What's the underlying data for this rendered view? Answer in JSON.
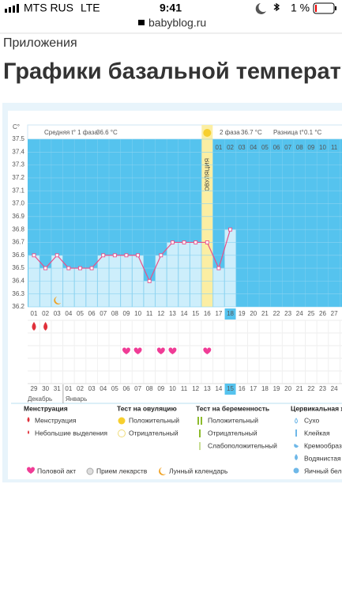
{
  "status_bar": {
    "carrier": "MTS RUS",
    "network": "LTE",
    "time": "9:41",
    "battery": "1 %"
  },
  "url": "babyblog.ru",
  "breadcrumb": "Приложения",
  "title": "Графики базальной температу",
  "summary": {
    "phase1_label": "Средняя t° 1 фаза",
    "phase1_value": "36.6 °C",
    "phase2_label": "2 фаза",
    "phase2_value": "36.7 °C",
    "diff_label": "Разница t°",
    "diff_value": "0.1 °C"
  },
  "chart_data": {
    "type": "line",
    "y_label": "C°",
    "categories": [
      "01",
      "02",
      "03",
      "04",
      "05",
      "06",
      "07",
      "08",
      "09",
      "10",
      "11",
      "12",
      "13",
      "14",
      "15",
      "16",
      "17",
      "18",
      "19",
      "20",
      "21",
      "22",
      "23",
      "24",
      "25",
      "26",
      "27"
    ],
    "values": [
      36.6,
      36.5,
      36.6,
      36.5,
      36.5,
      36.5,
      36.6,
      36.6,
      36.6,
      36.6,
      36.4,
      36.6,
      36.7,
      36.7,
      36.7,
      36.7,
      36.5,
      36.8,
      null,
      null,
      null,
      null,
      null,
      null,
      null,
      null,
      null
    ],
    "color": "#e8508a",
    "ylim": [
      36.2,
      37.5
    ],
    "yticks": [
      36.2,
      36.3,
      36.4,
      36.5,
      36.6,
      36.7,
      36.8,
      36.9,
      {
        "value": 37,
        "label": "37.0"
      },
      37.1,
      37.2,
      37.3,
      37.4,
      37.5
    ],
    "ovulation_day": "16",
    "ovulation_label": "ОВУЛЯЦИЯ",
    "highlight_day": "18",
    "phase2_day_labels": [
      "01",
      "02",
      "03",
      "04",
      "05",
      "06",
      "07",
      "08",
      "09",
      "10",
      "11"
    ],
    "menstruation_days": [
      "01",
      "02"
    ],
    "intercourse_days": [
      "09",
      "10",
      "12",
      "13",
      "16"
    ],
    "moon_days": [
      "03"
    ],
    "dates": [
      {
        "label": "29",
        "weekend": true
      },
      {
        "label": "30",
        "weekend": false
      },
      {
        "label": "31",
        "weekend": false
      },
      {
        "label": "01",
        "weekend": false
      },
      {
        "label": "02",
        "weekend": false
      },
      {
        "label": "03",
        "weekend": false
      },
      {
        "label": "04",
        "weekend": true
      },
      {
        "label": "05",
        "weekend": true
      },
      {
        "label": "06",
        "weekend": false
      },
      {
        "label": "07",
        "weekend": false
      },
      {
        "label": "08",
        "weekend": false
      },
      {
        "label": "09",
        "weekend": false
      },
      {
        "label": "10",
        "weekend": false
      },
      {
        "label": "11",
        "weekend": true
      },
      {
        "label": "12",
        "weekend": true
      },
      {
        "label": "13",
        "weekend": false
      },
      {
        "label": "14",
        "weekend": false
      },
      {
        "label": "15",
        "weekend": false,
        "today": true
      },
      {
        "label": "16",
        "weekend": false
      },
      {
        "label": "17",
        "weekend": false
      },
      {
        "label": "18",
        "weekend": true
      },
      {
        "label": "19",
        "weekend": true
      },
      {
        "label": "20",
        "weekend": false
      },
      {
        "label": "21",
        "weekend": false
      },
      {
        "label": "22",
        "weekend": false
      },
      {
        "label": "23",
        "weekend": false
      },
      {
        "label": "24",
        "weekend": false
      }
    ],
    "months": [
      "Декабрь",
      "Январь"
    ]
  },
  "legend": {
    "menstruation": {
      "title": "Менструация",
      "items": [
        "Менструация",
        "Небольшие выделения"
      ]
    },
    "ovulation_test": {
      "title": "Тест на овуляцию",
      "items": [
        "Положительный",
        "Отрицательный"
      ]
    },
    "pregnancy_test": {
      "title": "Тест на беременность",
      "items": [
        "Положительный",
        "Отрицательный",
        "Слабоположительный"
      ]
    },
    "cervical": {
      "title": "Цервикальная жидкость",
      "items": [
        "Сухо",
        "Клейкая",
        "Кремообразная",
        "Водянистая",
        "Яичный белок"
      ]
    },
    "other": [
      "Половой акт",
      "Прием лекарств",
      "Лунный календарь"
    ]
  }
}
